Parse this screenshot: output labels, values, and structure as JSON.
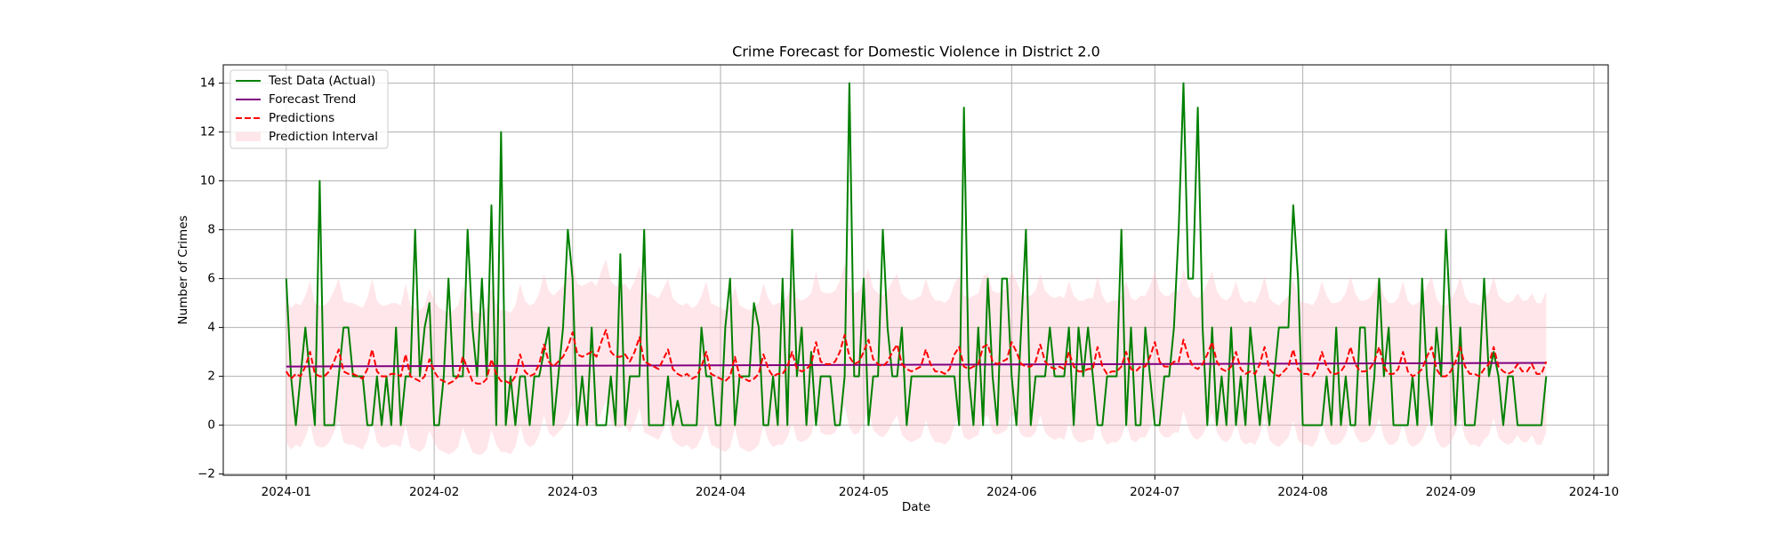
{
  "chart_data": {
    "type": "line",
    "title": "Crime Forecast for Domestic Violence in District 2.0",
    "xlabel": "Date",
    "ylabel": "Number of Crimes",
    "grid": true,
    "legend": "upper left",
    "xlim": [
      -13.2,
      277
    ],
    "xticks": [
      {
        "value": 0,
        "label": "2024-01"
      },
      {
        "value": 31,
        "label": "2024-02"
      },
      {
        "value": 60,
        "label": "2024-03"
      },
      {
        "value": 91,
        "label": "2024-04"
      },
      {
        "value": 121,
        "label": "2024-05"
      },
      {
        "value": 152,
        "label": "2024-06"
      },
      {
        "value": 182,
        "label": "2024-07"
      },
      {
        "value": 213,
        "label": "2024-08"
      },
      {
        "value": 244,
        "label": "2024-09"
      },
      {
        "value": 274,
        "label": "2024-10"
      }
    ],
    "ylim": [
      -2.05,
      14.75
    ],
    "yticks": [
      {
        "value": -2,
        "label": "−2"
      },
      0,
      2,
      4,
      6,
      8,
      10,
      12,
      14
    ],
    "x": [
      0,
      1,
      2,
      3,
      4,
      5,
      6,
      7,
      8,
      9,
      10,
      11,
      12,
      13,
      14,
      15,
      16,
      17,
      18,
      19,
      20,
      21,
      22,
      23,
      24,
      25,
      26,
      27,
      28,
      29,
      30,
      31,
      32,
      33,
      34,
      35,
      36,
      37,
      38,
      39,
      40,
      41,
      42,
      43,
      44,
      45,
      46,
      47,
      48,
      49,
      50,
      51,
      52,
      53,
      54,
      55,
      56,
      57,
      58,
      59,
      60,
      61,
      62,
      63,
      64,
      65,
      66,
      67,
      68,
      69,
      70,
      71,
      72,
      73,
      74,
      75,
      76,
      77,
      78,
      79,
      80,
      81,
      82,
      83,
      84,
      85,
      86,
      87,
      88,
      89,
      90,
      91,
      92,
      93,
      94,
      95,
      96,
      97,
      98,
      99,
      100,
      101,
      102,
      103,
      104,
      105,
      106,
      107,
      108,
      109,
      110,
      111,
      112,
      113,
      114,
      115,
      116,
      117,
      118,
      119,
      120,
      121,
      122,
      123,
      124,
      125,
      126,
      127,
      128,
      129,
      130,
      131,
      132,
      133,
      134,
      135,
      136,
      137,
      138,
      139,
      140,
      141,
      142,
      143,
      144,
      145,
      146,
      147,
      148,
      149,
      150,
      151,
      152,
      153,
      154,
      155,
      156,
      157,
      158,
      159,
      160,
      161,
      162,
      163,
      164,
      165,
      166,
      167,
      168,
      169,
      170,
      171,
      172,
      173,
      174,
      175,
      176,
      177,
      178,
      179,
      180,
      181,
      182,
      183,
      184,
      185,
      186,
      187,
      188,
      189,
      190,
      191,
      192,
      193,
      194,
      195,
      196,
      197,
      198,
      199,
      200,
      201,
      202,
      203,
      204,
      205,
      206,
      207,
      208,
      209,
      210,
      211,
      212,
      213,
      214,
      215,
      216,
      217,
      218,
      219,
      220,
      221,
      222,
      223,
      224,
      225,
      226,
      227,
      228,
      229,
      230,
      231,
      232,
      233,
      234,
      235,
      236,
      237,
      238,
      239,
      240,
      241,
      242,
      243,
      244,
      245,
      246,
      247,
      248,
      249,
      250,
      251,
      252,
      253,
      254,
      255,
      256,
      257,
      258,
      259,
      260,
      261,
      262,
      263,
      264
    ],
    "series": [
      {
        "name": "Test Data (Actual)",
        "color": "#008000",
        "dash": "solid",
        "values": [
          6,
          2,
          0,
          2,
          4,
          2,
          0,
          10,
          0,
          0,
          0,
          2,
          4,
          4,
          2,
          2,
          2,
          0,
          0,
          2,
          0,
          2,
          0,
          4,
          0,
          2,
          2,
          8,
          2,
          4,
          5,
          0,
          0,
          2,
          6,
          2,
          2,
          2,
          8,
          4,
          2,
          6,
          2,
          9,
          0,
          12,
          0,
          2,
          0,
          2,
          2,
          0,
          2,
          2,
          3,
          4,
          0,
          2,
          4,
          8,
          6,
          0,
          2,
          0,
          4,
          0,
          0,
          0,
          2,
          0,
          7,
          0,
          2,
          2,
          2,
          8,
          0,
          0,
          0,
          0,
          2,
          0,
          1,
          0,
          0,
          0,
          0,
          4,
          2,
          2,
          0,
          0,
          4,
          6,
          0,
          2,
          2,
          2,
          5,
          4,
          0,
          0,
          2,
          0,
          6,
          0,
          8,
          2,
          4,
          0,
          3,
          0,
          2,
          2,
          2,
          0,
          0,
          2,
          14,
          2,
          2,
          6,
          0,
          2,
          2,
          8,
          4,
          2,
          2,
          4,
          0,
          2,
          2,
          2,
          2,
          2,
          2,
          2,
          2,
          2,
          2,
          0,
          13,
          2,
          0,
          4,
          0,
          6,
          2,
          0,
          6,
          6,
          2,
          0,
          4,
          8,
          0,
          2,
          2,
          2,
          4,
          2,
          2,
          2,
          4,
          0,
          4,
          2,
          4,
          2,
          0,
          0,
          2,
          2,
          2,
          8,
          0,
          4,
          0,
          0,
          4,
          2,
          0,
          0,
          2,
          2,
          4,
          8,
          14,
          6,
          6,
          13,
          4,
          0,
          4,
          0,
          2,
          0,
          4,
          0,
          2,
          0,
          4,
          2,
          0,
          2,
          0,
          2,
          4,
          4,
          4,
          9,
          6,
          0,
          0,
          0,
          0,
          0,
          2,
          0,
          4,
          0,
          2,
          0,
          0,
          4,
          4,
          0,
          2,
          6,
          2,
          4,
          0,
          0,
          0,
          0,
          2,
          0,
          6,
          2,
          0,
          4,
          2,
          8,
          4,
          0,
          4,
          0,
          0,
          0,
          2,
          6,
          2,
          3,
          2,
          0,
          2,
          2,
          0,
          0,
          0,
          0,
          0,
          0,
          2
        ]
      },
      {
        "name": "Forecast Trend",
        "color": "#800080",
        "dash": "solid",
        "x": [
          0,
          264
        ],
        "values": [
          2.4,
          2.55
        ]
      },
      {
        "name": "Predictions",
        "color": "#ff0000",
        "dash": "dashed",
        "values": [
          2.2,
          1.9,
          2.1,
          2.0,
          2.4,
          3.0,
          2.1,
          2.0,
          2.0,
          2.2,
          2.6,
          3.1,
          2.2,
          2.1,
          2.1,
          2.0,
          1.9,
          2.3,
          3.1,
          2.2,
          2.0,
          2.0,
          2.1,
          2.1,
          2.0,
          2.9,
          2.0,
          1.9,
          1.8,
          2.0,
          2.7,
          2.2,
          1.9,
          1.8,
          1.7,
          1.8,
          2.0,
          2.8,
          2.3,
          1.8,
          1.7,
          1.7,
          1.9,
          2.7,
          2.1,
          1.8,
          1.8,
          1.7,
          2.0,
          2.9,
          2.2,
          2.0,
          2.1,
          2.5,
          3.3,
          2.6,
          2.4,
          2.6,
          2.8,
          3.2,
          3.8,
          2.9,
          2.8,
          2.9,
          3.0,
          2.8,
          3.4,
          3.9,
          3.0,
          2.8,
          2.8,
          2.9,
          2.6,
          3.0,
          3.6,
          2.6,
          2.5,
          2.4,
          2.3,
          2.7,
          3.1,
          2.3,
          2.1,
          2.0,
          2.1,
          1.9,
          2.0,
          2.4,
          3.0,
          2.1,
          2.0,
          1.9,
          1.8,
          2.0,
          2.8,
          2.0,
          1.9,
          1.8,
          1.9,
          2.1,
          2.9,
          2.3,
          2.0,
          2.1,
          2.1,
          2.4,
          3.0,
          2.3,
          2.2,
          2.3,
          2.5,
          3.4,
          2.6,
          2.5,
          2.5,
          2.6,
          3.0,
          3.7,
          2.8,
          2.5,
          2.6,
          3.0,
          3.5,
          2.7,
          2.5,
          2.4,
          2.6,
          3.0,
          3.3,
          2.5,
          2.3,
          2.2,
          2.3,
          2.4,
          3.1,
          2.5,
          2.2,
          2.2,
          2.1,
          2.3,
          2.9,
          3.2,
          2.4,
          2.3,
          2.4,
          2.5,
          3.2,
          3.3,
          2.6,
          2.5,
          2.6,
          2.7,
          3.4,
          3.0,
          2.5,
          2.4,
          2.4,
          2.6,
          3.3,
          2.6,
          2.4,
          2.3,
          2.4,
          2.3,
          3.0,
          2.4,
          2.2,
          2.2,
          2.3,
          2.3,
          3.2,
          2.4,
          2.1,
          2.2,
          2.2,
          2.4,
          3.0,
          2.3,
          2.2,
          2.4,
          2.4,
          2.8,
          3.4,
          2.6,
          2.4,
          2.4,
          2.6,
          2.6,
          3.5,
          2.8,
          2.4,
          2.3,
          2.5,
          2.9,
          3.4,
          2.6,
          2.3,
          2.2,
          2.4,
          3.0,
          2.3,
          2.1,
          2.2,
          2.1,
          2.5,
          3.2,
          2.3,
          2.1,
          2.0,
          2.2,
          2.4,
          3.1,
          2.3,
          2.1,
          2.1,
          2.0,
          2.3,
          3.0,
          2.4,
          2.1,
          2.1,
          2.2,
          2.5,
          3.2,
          2.5,
          2.2,
          2.2,
          2.3,
          2.6,
          3.2,
          2.4,
          2.1,
          2.1,
          2.3,
          3.0,
          2.2,
          2.0,
          2.1,
          2.3,
          2.8,
          3.2,
          2.3,
          2.0,
          2.0,
          2.2,
          2.6,
          3.2,
          2.4,
          2.1,
          2.1,
          2.0,
          2.3,
          2.5,
          3.2,
          2.4,
          2.2,
          2.1,
          2.2,
          2.5,
          2.2,
          2.2,
          2.5,
          2.1,
          2.1,
          2.6
        ]
      }
    ],
    "interval": {
      "name": "Prediction Interval",
      "color": "#ffc0cb",
      "opacity": 0.4,
      "lower": [
        -0.7,
        -1.0,
        -0.8,
        -0.9,
        -0.5,
        0.1,
        -0.8,
        -0.9,
        -0.9,
        -0.7,
        -0.3,
        0.2,
        -0.7,
        -0.8,
        -0.8,
        -0.9,
        -1.0,
        -0.6,
        0.2,
        -0.7,
        -0.9,
        -0.9,
        -0.8,
        -0.8,
        -0.9,
        0.0,
        -0.9,
        -1.0,
        -1.1,
        -0.9,
        -0.2,
        -0.7,
        -1.0,
        -1.1,
        -1.2,
        -1.1,
        -0.9,
        -0.1,
        -0.6,
        -1.1,
        -1.2,
        -1.2,
        -1.0,
        -0.2,
        -0.8,
        -1.1,
        -1.1,
        -1.2,
        -0.9,
        0.0,
        -0.7,
        -0.9,
        -0.8,
        -0.4,
        0.4,
        -0.3,
        -0.5,
        -0.3,
        -0.1,
        0.3,
        0.9,
        0.0,
        -0.1,
        0.0,
        0.1,
        -0.1,
        0.5,
        1.0,
        0.1,
        -0.1,
        -0.1,
        0.0,
        -0.3,
        0.1,
        0.7,
        -0.3,
        -0.4,
        -0.5,
        -0.6,
        -0.2,
        0.2,
        -0.6,
        -0.8,
        -0.9,
        -0.8,
        -1.0,
        -0.9,
        -0.5,
        0.1,
        -0.8,
        -0.9,
        -1.0,
        -1.1,
        -0.9,
        -0.1,
        -0.9,
        -1.0,
        -1.1,
        -1.0,
        -0.8,
        0.0,
        -0.6,
        -0.9,
        -0.8,
        -0.8,
        -0.5,
        0.1,
        -0.6,
        -0.7,
        -0.6,
        -0.4,
        0.5,
        -0.3,
        -0.4,
        -0.4,
        -0.3,
        0.1,
        0.8,
        -0.1,
        -0.4,
        -0.3,
        0.1,
        0.6,
        -0.2,
        -0.4,
        -0.5,
        -0.3,
        0.1,
        0.4,
        -0.4,
        -0.6,
        -0.7,
        -0.6,
        -0.5,
        0.2,
        -0.4,
        -0.7,
        -0.7,
        -0.8,
        -0.6,
        0.0,
        0.3,
        -0.5,
        -0.6,
        -0.5,
        -0.4,
        0.3,
        0.4,
        -0.3,
        -0.4,
        -0.3,
        -0.2,
        0.5,
        0.1,
        -0.4,
        -0.5,
        -0.5,
        -0.3,
        0.4,
        -0.3,
        -0.5,
        -0.6,
        -0.5,
        -0.6,
        0.1,
        -0.5,
        -0.7,
        -0.7,
        -0.6,
        -0.6,
        0.3,
        -0.5,
        -0.8,
        -0.7,
        -0.7,
        -0.5,
        0.1,
        -0.6,
        -0.7,
        -0.5,
        -0.5,
        -0.1,
        0.5,
        -0.3,
        -0.5,
        -0.5,
        -0.3,
        -0.3,
        0.6,
        -0.1,
        -0.5,
        -0.6,
        -0.4,
        0.0,
        0.5,
        -0.3,
        -0.6,
        -0.7,
        -0.5,
        0.1,
        -0.6,
        -0.8,
        -0.7,
        -0.8,
        -0.4,
        0.3,
        -0.6,
        -0.8,
        -0.9,
        -0.7,
        -0.5,
        0.2,
        -0.6,
        -0.8,
        -0.8,
        -0.9,
        -0.6,
        0.1,
        -0.5,
        -0.8,
        -0.8,
        -0.7,
        -0.4,
        0.3,
        -0.4,
        -0.7,
        -0.7,
        -0.6,
        -0.3,
        0.3,
        -0.5,
        -0.8,
        -0.8,
        -0.6,
        0.1,
        -0.7,
        -0.9,
        -0.8,
        -0.6,
        -0.1,
        0.3,
        -0.6,
        -0.9,
        -0.9,
        -0.7,
        -0.3,
        0.3,
        -0.5,
        -0.8,
        -0.8,
        -0.9,
        -0.6,
        -0.4,
        0.3,
        -0.5,
        -0.7,
        -0.8,
        -0.7,
        -0.4,
        -0.7,
        -0.7,
        -0.4,
        -0.8,
        -0.8,
        -0.3
      ],
      "upper": [
        5.1,
        4.8,
        5.0,
        4.9,
        5.3,
        5.9,
        5.0,
        4.9,
        4.9,
        5.1,
        5.5,
        6.0,
        5.1,
        5.0,
        5.0,
        4.9,
        4.8,
        5.2,
        6.0,
        5.1,
        4.9,
        4.9,
        5.0,
        5.0,
        4.9,
        5.8,
        4.9,
        4.8,
        4.7,
        4.9,
        5.6,
        5.1,
        4.8,
        4.7,
        4.6,
        4.7,
        4.9,
        5.7,
        5.2,
        4.7,
        4.6,
        4.6,
        4.8,
        5.6,
        5.0,
        4.7,
        4.7,
        4.6,
        4.9,
        5.8,
        5.1,
        4.9,
        5.0,
        5.4,
        6.2,
        5.5,
        5.3,
        5.5,
        5.7,
        6.1,
        6.7,
        5.8,
        5.7,
        5.8,
        5.9,
        5.7,
        6.3,
        6.8,
        5.9,
        5.7,
        5.7,
        5.8,
        5.5,
        5.9,
        6.5,
        5.5,
        5.4,
        5.3,
        5.2,
        5.6,
        6.0,
        5.2,
        5.0,
        4.9,
        5.0,
        4.8,
        4.9,
        5.3,
        5.9,
        5.0,
        4.9,
        4.8,
        4.7,
        4.9,
        5.7,
        4.9,
        4.8,
        4.7,
        4.8,
        5.0,
        5.8,
        5.2,
        4.9,
        5.0,
        5.0,
        5.3,
        5.9,
        5.2,
        5.1,
        5.2,
        5.4,
        6.3,
        5.5,
        5.4,
        5.4,
        5.5,
        5.9,
        6.6,
        5.7,
        5.4,
        5.5,
        5.9,
        6.4,
        5.6,
        5.4,
        5.3,
        5.5,
        5.9,
        6.2,
        5.4,
        5.2,
        5.1,
        5.2,
        5.3,
        6.0,
        5.4,
        5.1,
        5.1,
        5.0,
        5.2,
        5.8,
        6.1,
        5.3,
        5.2,
        5.3,
        5.4,
        6.1,
        6.2,
        5.5,
        5.4,
        5.5,
        5.6,
        6.3,
        5.9,
        5.4,
        5.3,
        5.3,
        5.5,
        6.2,
        5.5,
        5.3,
        5.2,
        5.3,
        5.2,
        5.9,
        5.3,
        5.1,
        5.1,
        5.2,
        5.2,
        6.1,
        5.3,
        5.0,
        5.1,
        5.1,
        5.3,
        5.9,
        5.2,
        5.1,
        5.3,
        5.3,
        5.7,
        6.3,
        5.5,
        5.3,
        5.3,
        5.5,
        5.5,
        6.4,
        5.7,
        5.3,
        5.2,
        5.4,
        5.8,
        6.3,
        5.5,
        5.2,
        5.1,
        5.3,
        5.9,
        5.2,
        5.0,
        5.1,
        5.0,
        5.4,
        6.1,
        5.2,
        5.0,
        4.9,
        5.1,
        5.3,
        6.0,
        5.2,
        5.0,
        5.0,
        4.9,
        5.2,
        5.9,
        5.3,
        5.0,
        5.0,
        5.1,
        5.4,
        6.1,
        5.4,
        5.1,
        5.1,
        5.2,
        5.5,
        6.1,
        5.3,
        5.0,
        5.0,
        5.2,
        5.9,
        5.1,
        4.9,
        5.0,
        5.2,
        5.7,
        6.1,
        5.2,
        4.9,
        4.9,
        5.1,
        5.5,
        6.1,
        5.3,
        5.0,
        5.0,
        4.9,
        5.2,
        5.4,
        6.1,
        5.3,
        5.1,
        5.0,
        5.1,
        5.4,
        5.1,
        5.1,
        5.4,
        5.0,
        5.0,
        5.5
      ]
    }
  }
}
